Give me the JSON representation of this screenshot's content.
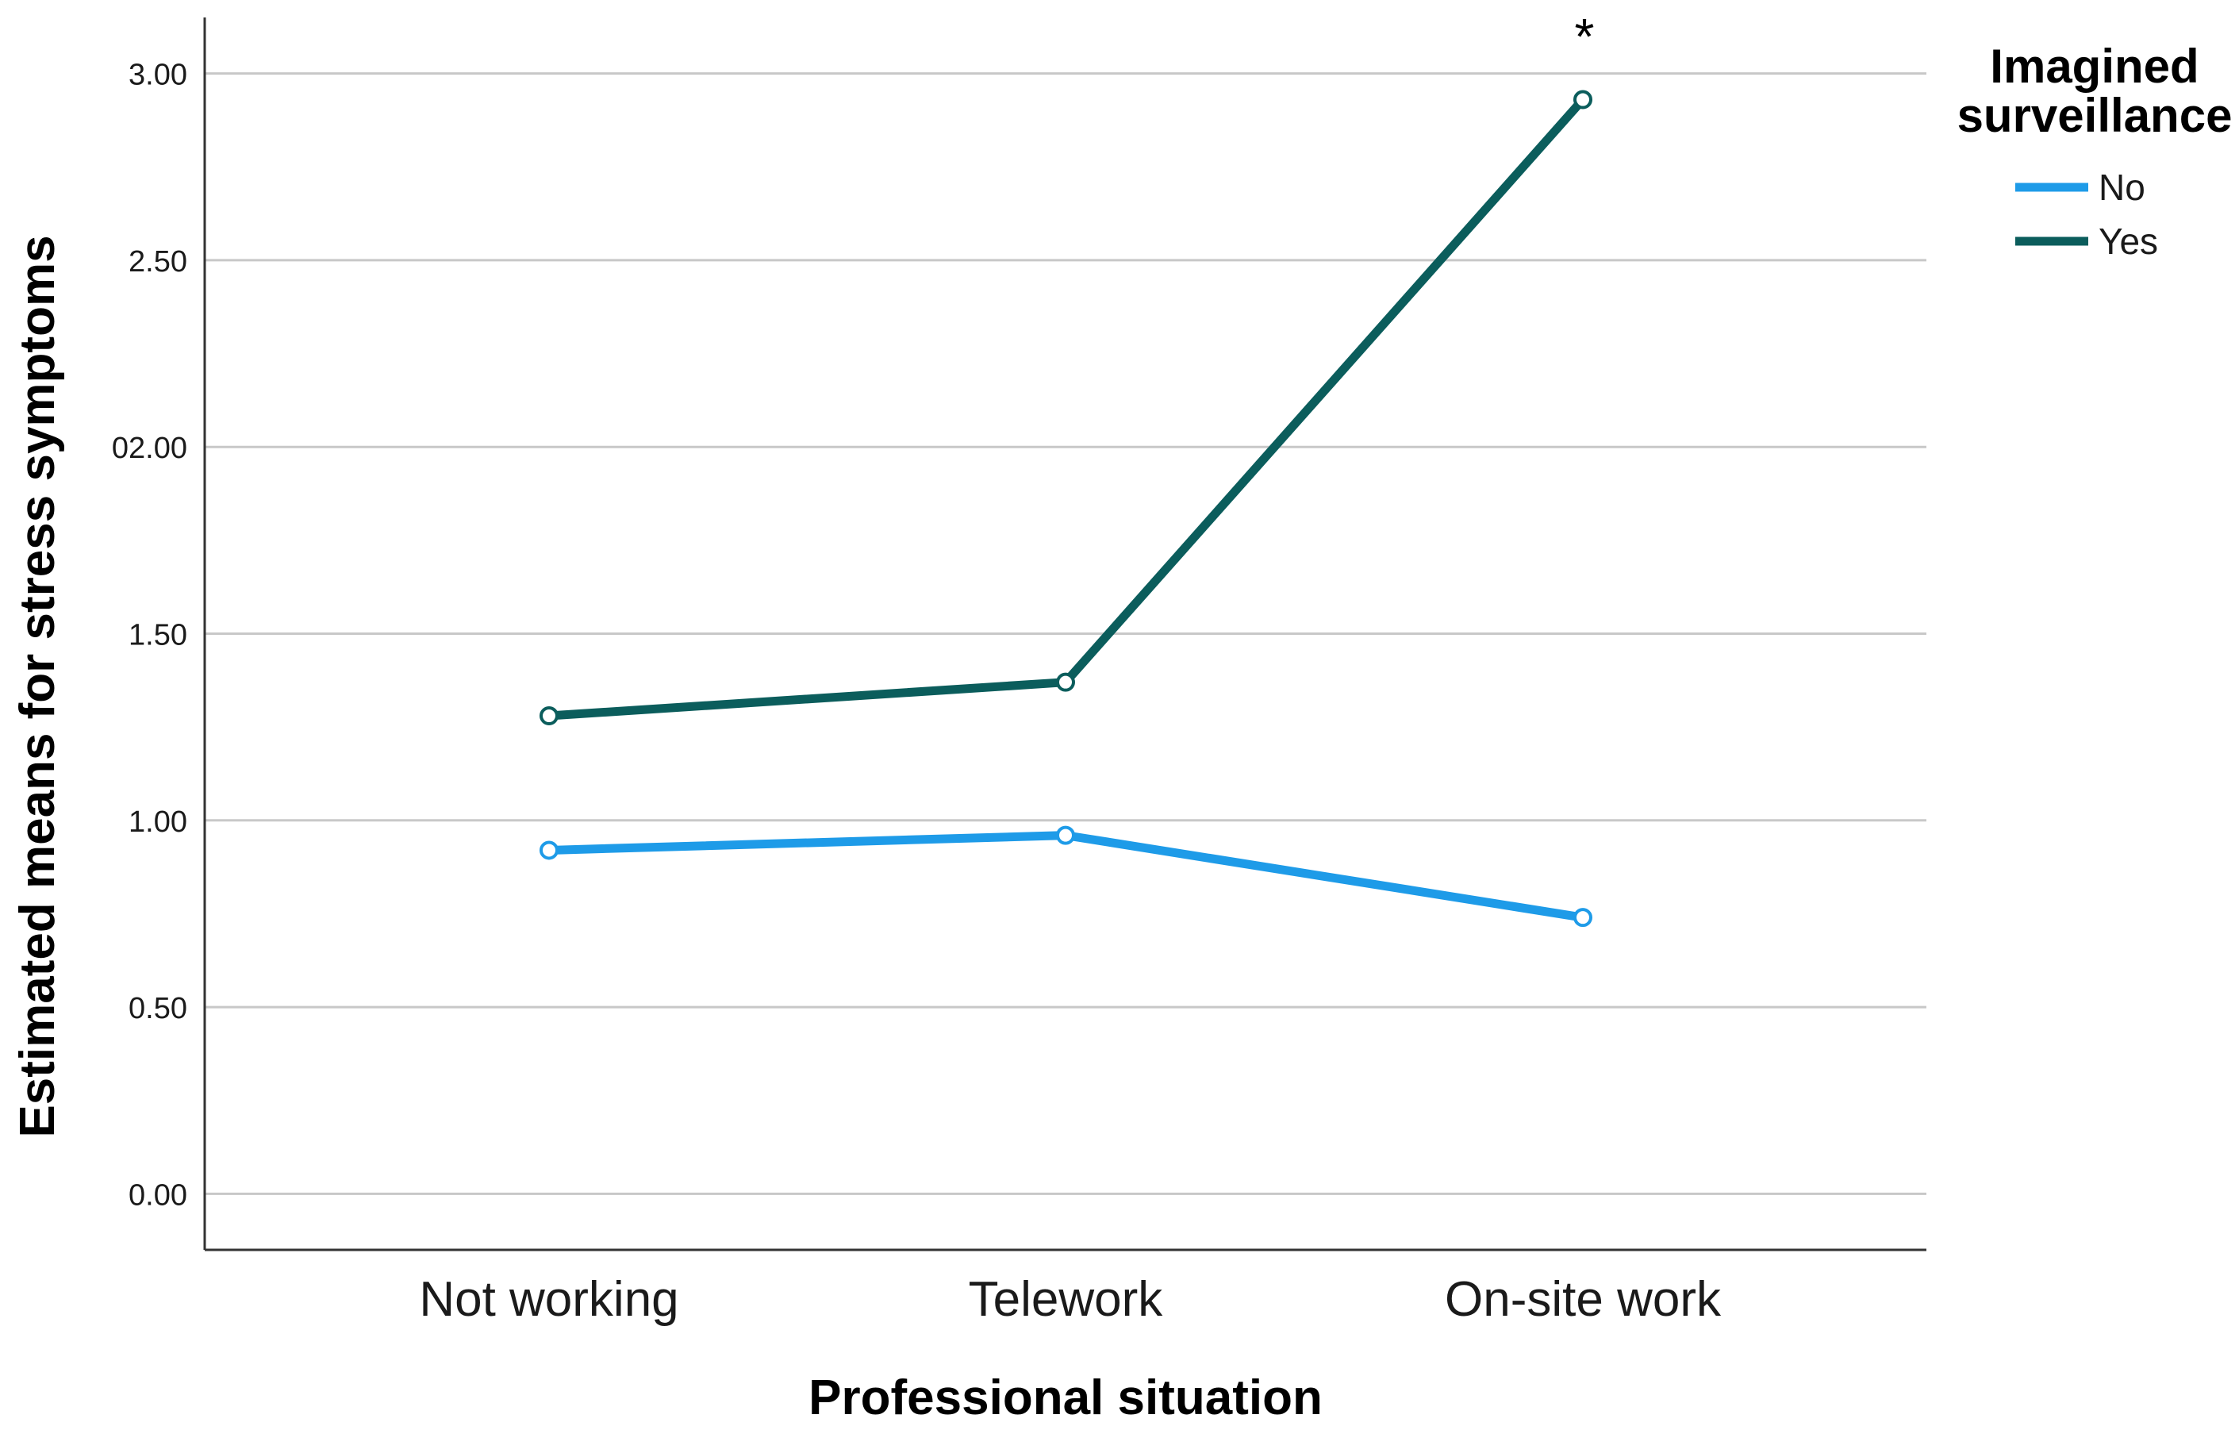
{
  "chart_data": {
    "type": "line",
    "xlabel": "Professional situation",
    "ylabel": "Estimated means for stress symptoms",
    "categories": [
      "Not working",
      "Telework",
      "On-site work"
    ],
    "ylim": [
      -0.15,
      3.15
    ],
    "yticks": [
      0.0,
      0.5,
      1.0,
      1.5,
      2.0,
      2.5,
      3.0
    ],
    "ytick_labels": [
      "0.00",
      "0.50",
      "1.00",
      "1.50",
      "02.00",
      "2.50",
      "3.00"
    ],
    "grid": "horizontal",
    "legend": {
      "title": "Imagined surveillance",
      "title_lines": [
        "Imagined",
        "surveillance"
      ],
      "placement": "top-right outside"
    },
    "series": [
      {
        "name": "No",
        "color": "#1e9be8",
        "values": [
          0.92,
          0.96,
          0.74
        ]
      },
      {
        "name": "Yes",
        "color": "#0b5d5c",
        "values": [
          1.28,
          1.37,
          2.93
        ]
      }
    ],
    "annotations": [
      {
        "text": "*",
        "category": "On-site work"
      }
    ]
  }
}
